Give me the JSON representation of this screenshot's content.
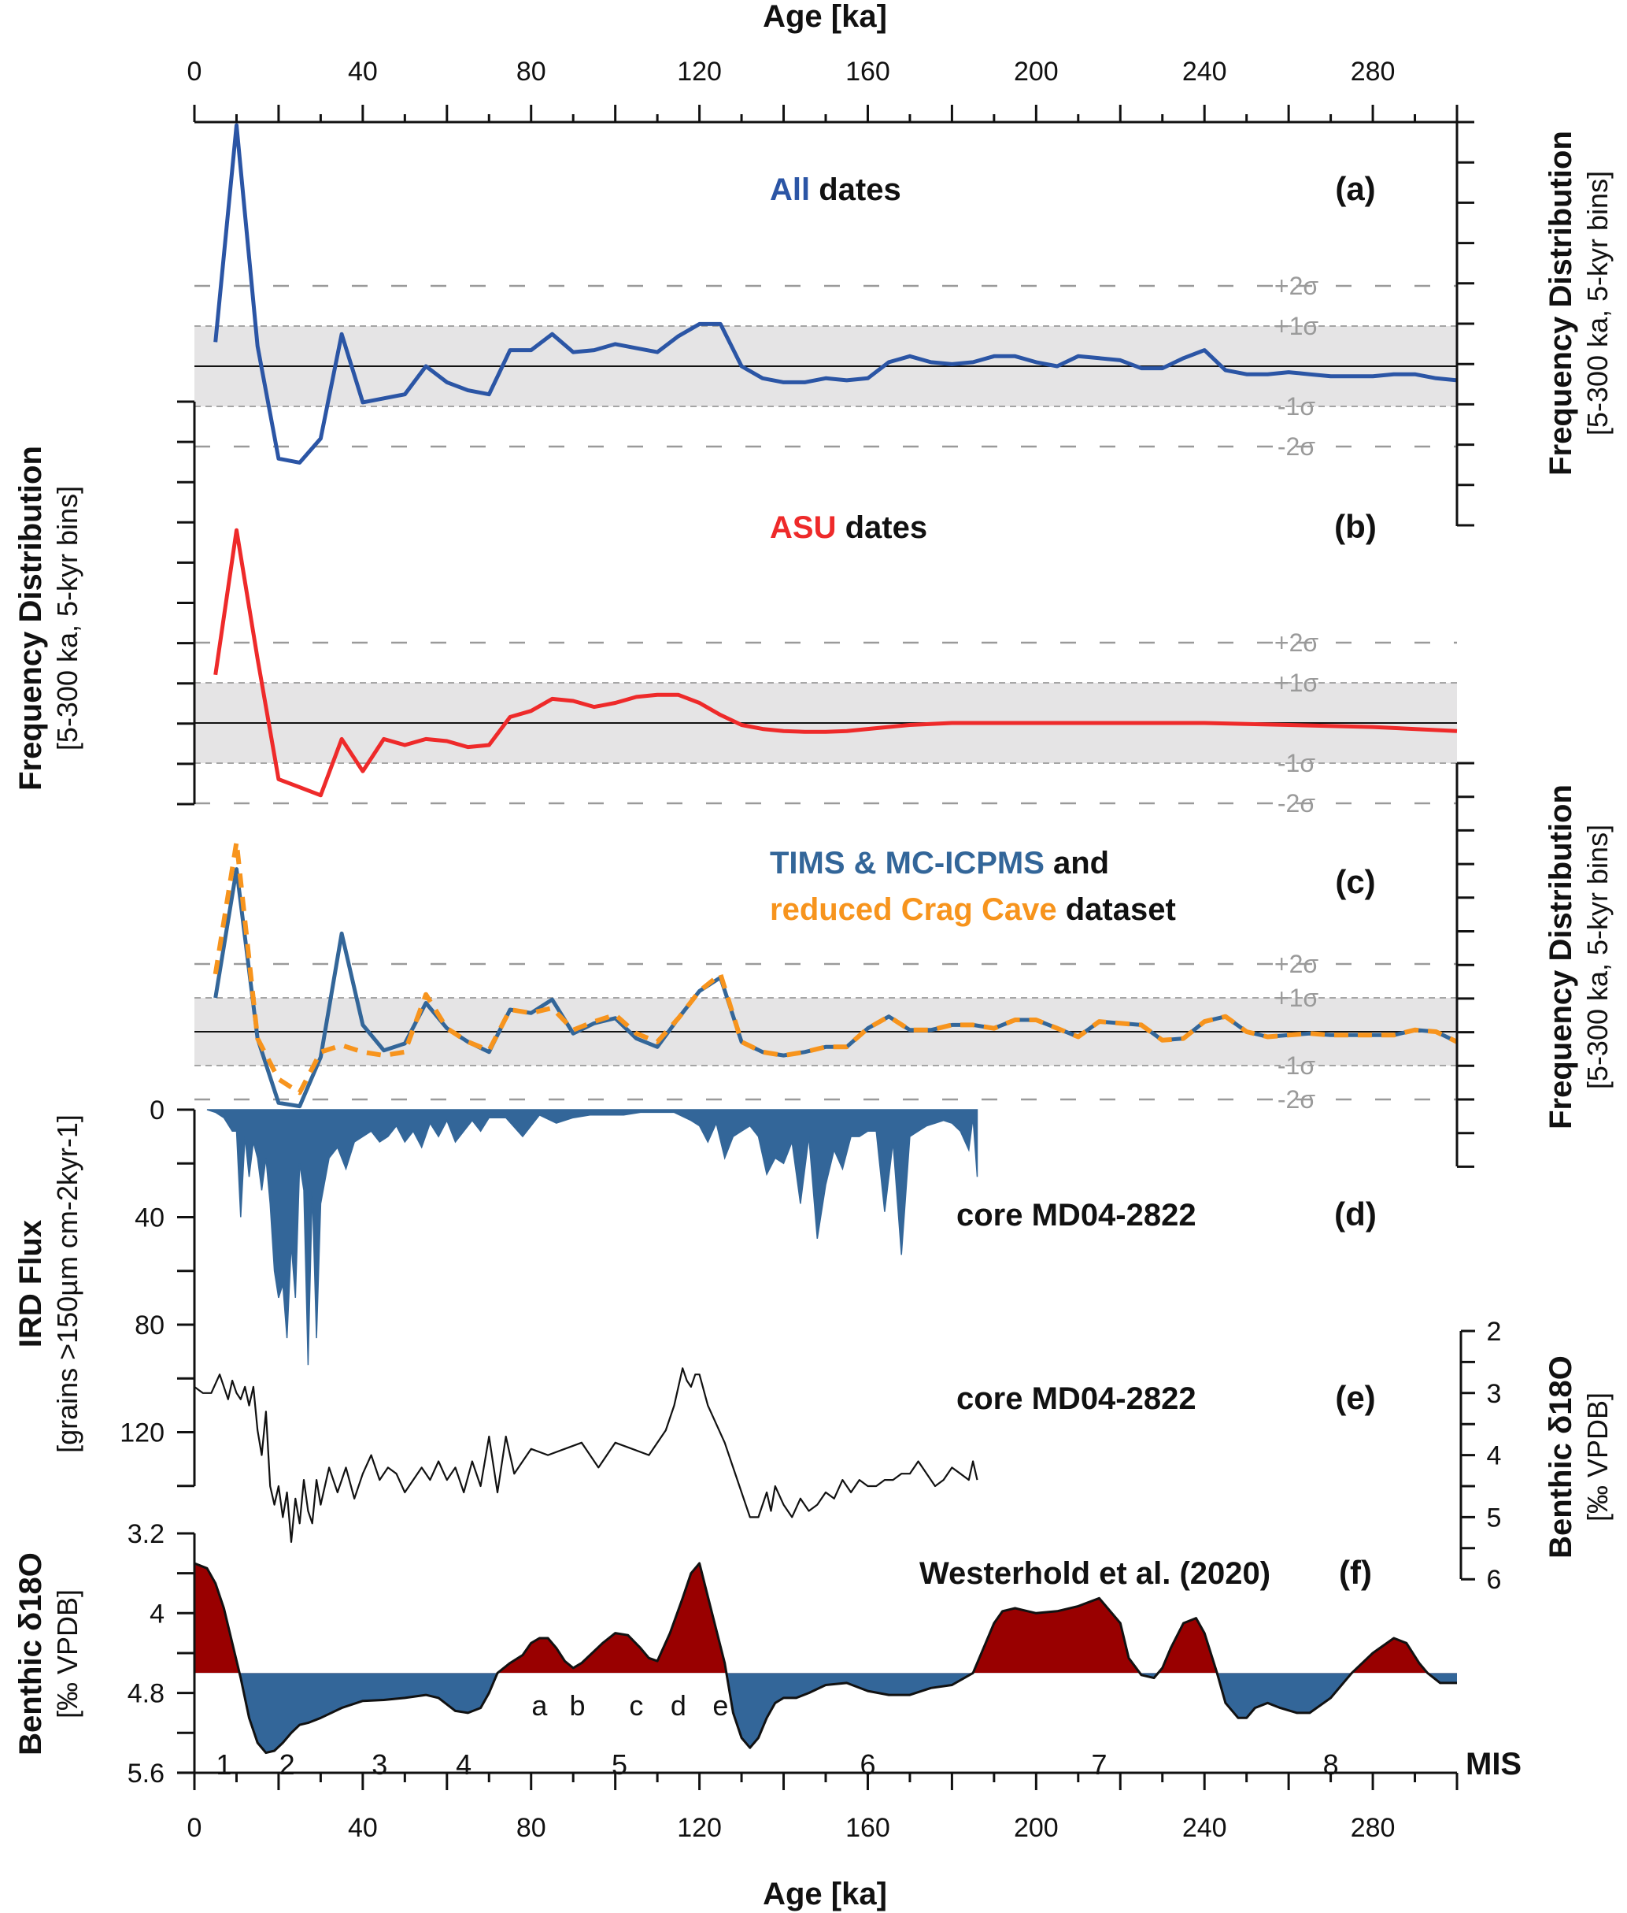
{
  "figure": {
    "top_axis_title": "Age [ka]",
    "bottom_axis_title": "Age [ka]",
    "x_ticks": [
      "0",
      "40",
      "80",
      "120",
      "160",
      "200",
      "240",
      "280"
    ],
    "x_range": [
      0,
      300
    ],
    "left_freq_axis": {
      "title": "Frequency Distribution",
      "subtitle": "[5-300 ka, 5-kyr bins]"
    },
    "right_freq_axis_a": {
      "title": "Frequency Distribution",
      "subtitle": "[5-300 ka, 5-kyr bins]"
    },
    "right_freq_axis_c": {
      "title": "Frequency Distribution",
      "subtitle": "[5-300 ka, 5-kyr bins]"
    },
    "sigma_labels": [
      "+2σ",
      "+1σ",
      "-1σ",
      "-2σ"
    ],
    "colors": {
      "all_dates": "#2b55a5",
      "asu_dates": "#ee2a2a",
      "tims": "#336699",
      "crag_cave": "#f7941d",
      "ird_fill": "#336699",
      "warm_fill": "#990000",
      "cold_fill": "#336699",
      "band_fill": "#e5e4e5",
      "sigma_grey": "#9a9a9a"
    }
  },
  "chart_data": [
    {
      "panel": "a",
      "type": "line",
      "letter": "(a)",
      "title_parts": [
        {
          "text": "All",
          "color": "all_dates"
        },
        {
          "text": " dates",
          "color": "black"
        }
      ],
      "ylabel": "Frequency Distribution [5-300 ka, 5-kyr bins]",
      "units": "sigma (standardized)",
      "ylim": [
        -4,
        7
      ],
      "x": [
        5,
        10,
        15,
        20,
        25,
        30,
        35,
        40,
        45,
        50,
        55,
        60,
        65,
        70,
        75,
        80,
        85,
        90,
        95,
        100,
        105,
        110,
        115,
        120,
        125,
        130,
        135,
        140,
        145,
        150,
        155,
        160,
        165,
        170,
        175,
        180,
        185,
        190,
        195,
        200,
        205,
        210,
        215,
        220,
        225,
        230,
        235,
        240,
        245,
        250,
        255,
        260,
        265,
        270,
        275,
        280,
        285,
        290,
        295,
        300
      ],
      "series": [
        {
          "name": "All dates",
          "color_key": "all_dates",
          "dashed": false,
          "values": [
            0.6,
            6.0,
            0.5,
            -2.3,
            -2.4,
            -1.8,
            0.8,
            -0.9,
            -0.8,
            -0.7,
            0.0,
            -0.4,
            -0.6,
            -0.7,
            0.4,
            0.4,
            0.8,
            0.35,
            0.4,
            0.55,
            0.45,
            0.35,
            0.75,
            1.05,
            1.05,
            0.0,
            -0.3,
            -0.4,
            -0.4,
            -0.3,
            -0.35,
            -0.3,
            0.1,
            0.25,
            0.1,
            0.05,
            0.1,
            0.25,
            0.25,
            0.1,
            0.0,
            0.25,
            0.2,
            0.15,
            -0.05,
            -0.05,
            0.2,
            0.4,
            -0.1,
            -0.2,
            -0.2,
            -0.15,
            -0.2,
            -0.25,
            -0.25,
            -0.25,
            -0.2,
            -0.2,
            -0.3,
            -0.35
          ]
        }
      ]
    },
    {
      "panel": "b",
      "type": "line",
      "letter": "(b)",
      "title_parts": [
        {
          "text": "ASU",
          "color": "asu_dates"
        },
        {
          "text": " dates",
          "color": "black"
        }
      ],
      "ylabel": "Frequency Distribution [5-300 ka, 5-kyr bins]",
      "units": "sigma (standardized)",
      "ylim": [
        -2,
        5.5
      ],
      "x": [
        5,
        10,
        15,
        20,
        25,
        30,
        35,
        40,
        45,
        50,
        55,
        60,
        65,
        70,
        75,
        80,
        85,
        90,
        95,
        100,
        105,
        110,
        115,
        120,
        125,
        130,
        135,
        140,
        145,
        150,
        155,
        160,
        170,
        180,
        190,
        200,
        220,
        240,
        260,
        280,
        300
      ],
      "series": [
        {
          "name": "ASU dates",
          "color_key": "asu_dates",
          "dashed": false,
          "values": [
            1.2,
            4.8,
            1.6,
            -1.4,
            -1.6,
            -1.8,
            -0.4,
            -1.2,
            -0.4,
            -0.55,
            -0.4,
            -0.45,
            -0.6,
            -0.55,
            0.15,
            0.3,
            0.6,
            0.55,
            0.4,
            0.5,
            0.65,
            0.7,
            0.7,
            0.5,
            0.2,
            -0.05,
            -0.15,
            -0.2,
            -0.22,
            -0.22,
            -0.2,
            -0.15,
            -0.05,
            0.0,
            0.0,
            0.0,
            0.0,
            0.0,
            -0.05,
            -0.1,
            -0.2
          ]
        }
      ]
    },
    {
      "panel": "c",
      "type": "line",
      "letter": "(c)",
      "title_line1_parts": [
        {
          "text": "TIMS & MC-ICPMS",
          "color": "tims"
        },
        {
          "text": " and",
          "color": "black"
        }
      ],
      "title_line2_parts": [
        {
          "text": "reduced Crag Cave",
          "color": "crag_cave"
        },
        {
          "text": " dataset",
          "color": "black"
        }
      ],
      "ylabel": "Frequency Distribution [5-300 ka, 5-kyr bins]",
      "units": "sigma (standardized)",
      "ylim": [
        -4,
        5
      ],
      "x": [
        5,
        10,
        15,
        20,
        25,
        30,
        35,
        40,
        45,
        50,
        55,
        60,
        65,
        70,
        75,
        80,
        85,
        90,
        95,
        100,
        105,
        110,
        115,
        120,
        125,
        130,
        135,
        140,
        145,
        150,
        155,
        160,
        165,
        170,
        175,
        180,
        185,
        190,
        195,
        200,
        205,
        210,
        215,
        220,
        225,
        230,
        235,
        240,
        245,
        250,
        255,
        260,
        265,
        270,
        275,
        280,
        285,
        290,
        295,
        300
      ],
      "series": [
        {
          "name": "TIMS & MC-ICPMS",
          "color_key": "tims",
          "dashed": false,
          "values": [
            1.0,
            4.8,
            -0.2,
            -2.1,
            -2.2,
            -0.75,
            2.9,
            0.2,
            -0.55,
            -0.35,
            0.85,
            0.1,
            -0.3,
            -0.6,
            0.65,
            0.55,
            0.95,
            -0.05,
            0.25,
            0.4,
            -0.2,
            -0.45,
            0.4,
            1.2,
            1.6,
            -0.3,
            -0.6,
            -0.7,
            -0.6,
            -0.45,
            -0.45,
            0.1,
            0.45,
            0.05,
            0.05,
            0.2,
            0.2,
            0.1,
            0.35,
            0.35,
            0.1,
            -0.15,
            0.3,
            0.25,
            0.2,
            -0.25,
            -0.2,
            0.3,
            0.45,
            0.0,
            -0.15,
            -0.1,
            -0.05,
            -0.1,
            -0.1,
            -0.1,
            -0.1,
            0.05,
            0.0,
            -0.3
          ]
        },
        {
          "name": "reduced Crag Cave dataset",
          "color_key": "crag_cave",
          "dashed": true,
          "values": [
            1.7,
            5.6,
            -0.2,
            -1.4,
            -1.8,
            -0.6,
            -0.4,
            -0.6,
            -0.7,
            -0.6,
            1.1,
            0.1,
            -0.3,
            -0.55,
            0.65,
            0.55,
            0.7,
            0.05,
            0.3,
            0.5,
            -0.05,
            -0.3,
            0.4,
            1.2,
            1.7,
            -0.3,
            -0.6,
            -0.7,
            -0.6,
            -0.45,
            -0.45,
            0.1,
            0.45,
            0.05,
            0.05,
            0.2,
            0.2,
            0.1,
            0.35,
            0.35,
            0.1,
            -0.15,
            0.3,
            0.25,
            0.2,
            -0.25,
            -0.2,
            0.3,
            0.45,
            0.0,
            -0.15,
            -0.1,
            -0.05,
            -0.1,
            -0.1,
            -0.1,
            -0.1,
            0.05,
            0.0,
            -0.3
          ]
        }
      ]
    },
    {
      "panel": "d",
      "type": "area",
      "letter": "(d)",
      "label": "core MD04-2822",
      "ylabel": "IRD Flux",
      "ylabel_sub": "[grains >150µm cm-2kyr-1]",
      "y_inverted": true,
      "ylim": [
        0,
        140
      ],
      "yticks": [
        "0",
        "40",
        "80",
        "120"
      ],
      "x": [
        3,
        5,
        7,
        9,
        10,
        11,
        12,
        13,
        14,
        15,
        16,
        17,
        18,
        19,
        20,
        21,
        22,
        23,
        24,
        25,
        26,
        27,
        28,
        29,
        30,
        32,
        34,
        36,
        38,
        40,
        42,
        44,
        46,
        48,
        50,
        52,
        54,
        56,
        58,
        60,
        62,
        64,
        66,
        68,
        70,
        74,
        78,
        82,
        86,
        90,
        94,
        98,
        102,
        106,
        110,
        114,
        118,
        120,
        122,
        124,
        126,
        128,
        130,
        132,
        134,
        136,
        138,
        140,
        142,
        144,
        146,
        148,
        150,
        152,
        154,
        156,
        158,
        160,
        162,
        164,
        166,
        168,
        170,
        172,
        174,
        176,
        178,
        180,
        182,
        184,
        185,
        186
      ],
      "values": [
        0,
        1,
        3,
        8,
        8,
        40,
        10,
        25,
        12,
        18,
        30,
        18,
        35,
        60,
        70,
        65,
        85,
        50,
        70,
        20,
        30,
        95,
        30,
        85,
        35,
        18,
        14,
        22,
        12,
        10,
        8,
        12,
        10,
        6,
        12,
        8,
        14,
        5,
        10,
        4,
        12,
        8,
        4,
        8,
        3,
        3,
        10,
        2,
        5,
        3,
        2,
        2,
        2,
        1,
        1,
        1,
        4,
        6,
        12,
        5,
        18,
        10,
        8,
        6,
        10,
        24,
        18,
        20,
        12,
        35,
        10,
        48,
        28,
        15,
        22,
        10,
        10,
        8,
        8,
        38,
        12,
        54,
        10,
        8,
        6,
        5,
        4,
        5,
        8,
        15,
        3,
        25
      ]
    },
    {
      "panel": "e",
      "type": "line",
      "letter": "(e)",
      "label": "core MD04-2822",
      "ylabel": "Benthic δ18O",
      "ylabel_sub": "[‰ VPDB]",
      "y_inverted": true,
      "ylim": [
        2,
        6
      ],
      "yticks": [
        "2",
        "3",
        "4",
        "5",
        "6"
      ],
      "x": [
        0,
        2,
        4,
        6,
        8,
        9,
        10,
        11,
        12,
        13,
        14,
        15,
        16,
        17,
        18,
        19,
        20,
        21,
        22,
        23,
        24,
        25,
        26,
        27,
        28,
        29,
        30,
        32,
        34,
        36,
        38,
        40,
        42,
        44,
        46,
        48,
        50,
        52,
        54,
        56,
        58,
        60,
        62,
        64,
        66,
        68,
        70,
        72,
        74,
        76,
        80,
        84,
        88,
        92,
        96,
        100,
        104,
        108,
        112,
        114,
        116,
        117,
        118,
        119,
        120,
        122,
        124,
        126,
        128,
        130,
        132,
        134,
        135,
        136,
        137,
        138,
        140,
        142,
        144,
        146,
        148,
        150,
        152,
        154,
        156,
        158,
        160,
        162,
        164,
        166,
        168,
        170,
        172,
        174,
        176,
        178,
        180,
        182,
        184,
        185,
        186
      ],
      "values": [
        2.9,
        3.0,
        3.0,
        2.7,
        3.1,
        2.8,
        3.0,
        3.1,
        2.9,
        3.2,
        2.9,
        3.6,
        4.0,
        3.3,
        4.5,
        4.8,
        4.5,
        5.0,
        4.6,
        5.4,
        4.7,
        5.1,
        4.4,
        4.9,
        5.1,
        4.4,
        4.8,
        4.2,
        4.6,
        4.2,
        4.7,
        4.3,
        4.0,
        4.4,
        4.2,
        4.3,
        4.6,
        4.4,
        4.2,
        4.4,
        4.1,
        4.4,
        4.2,
        4.6,
        4.1,
        4.5,
        3.7,
        4.6,
        3.7,
        4.3,
        3.9,
        4.0,
        3.9,
        3.8,
        4.2,
        3.8,
        3.9,
        4.0,
        3.6,
        3.2,
        2.6,
        2.8,
        2.9,
        2.7,
        2.7,
        3.2,
        3.5,
        3.8,
        4.2,
        4.6,
        5.0,
        5.0,
        4.8,
        4.6,
        4.9,
        4.5,
        4.8,
        5.0,
        4.7,
        4.9,
        4.8,
        4.6,
        4.7,
        4.4,
        4.6,
        4.4,
        4.5,
        4.5,
        4.4,
        4.4,
        4.3,
        4.3,
        4.1,
        4.3,
        4.5,
        4.4,
        4.2,
        4.3,
        4.4,
        4.1,
        4.4
      ]
    },
    {
      "panel": "f",
      "type": "area",
      "letter": "(f)",
      "label": "Westerhold et al. (2020)",
      "ylabel": "Benthic δ18O",
      "ylabel_sub": "[‰ VPDB]",
      "y_inverted": true,
      "ylim": [
        3.2,
        5.6
      ],
      "yticks": [
        "3.2",
        "4",
        "4.8",
        "5.6"
      ],
      "baseline": 4.6,
      "x": [
        0,
        3,
        5,
        7,
        9,
        11,
        13,
        15,
        17,
        19,
        21,
        23,
        25,
        27,
        30,
        35,
        40,
        45,
        50,
        55,
        58,
        62,
        65,
        68,
        70,
        72,
        75,
        78,
        80,
        82,
        84,
        86,
        88,
        90,
        92,
        94,
        97,
        100,
        103,
        106,
        108,
        110,
        113,
        116,
        118,
        120,
        123,
        126,
        128,
        130,
        132,
        134,
        136,
        138,
        140,
        143,
        146,
        150,
        155,
        160,
        165,
        170,
        175,
        180,
        185,
        188,
        190,
        192,
        195,
        198,
        200,
        205,
        210,
        215,
        220,
        222,
        225,
        228,
        230,
        232,
        235,
        238,
        240,
        243,
        245,
        248,
        250,
        252,
        255,
        258,
        262,
        265,
        270,
        275,
        280,
        285,
        288,
        291,
        293,
        296,
        298,
        300
      ],
      "values": [
        3.5,
        3.55,
        3.7,
        3.95,
        4.3,
        4.65,
        5.05,
        5.3,
        5.4,
        5.38,
        5.3,
        5.2,
        5.12,
        5.1,
        5.05,
        4.95,
        4.88,
        4.87,
        4.85,
        4.82,
        4.85,
        4.98,
        5.0,
        4.95,
        4.8,
        4.6,
        4.5,
        4.42,
        4.3,
        4.25,
        4.25,
        4.35,
        4.48,
        4.55,
        4.5,
        4.42,
        4.3,
        4.2,
        4.22,
        4.35,
        4.45,
        4.48,
        4.2,
        3.85,
        3.6,
        3.5,
        4.0,
        4.5,
        5.0,
        5.25,
        5.35,
        5.25,
        5.05,
        4.9,
        4.85,
        4.85,
        4.8,
        4.72,
        4.7,
        4.78,
        4.82,
        4.82,
        4.75,
        4.72,
        4.6,
        4.3,
        4.1,
        3.98,
        3.95,
        3.98,
        4.0,
        3.98,
        3.93,
        3.85,
        4.1,
        4.45,
        4.62,
        4.65,
        4.55,
        4.35,
        4.1,
        4.05,
        4.2,
        4.6,
        4.9,
        5.05,
        5.05,
        4.95,
        4.9,
        4.95,
        5.0,
        5.0,
        4.85,
        4.6,
        4.4,
        4.25,
        4.3,
        4.5,
        4.6,
        4.7,
        4.7,
        4.7
      ],
      "sub_labels": [
        {
          "text": "a",
          "x": 82
        },
        {
          "text": "b",
          "x": 91
        },
        {
          "text": "c",
          "x": 105
        },
        {
          "text": "d",
          "x": 115
        },
        {
          "text": "e",
          "x": 125
        }
      ],
      "mis_title": "MIS",
      "mis_labels": [
        {
          "text": "1",
          "x": 7
        },
        {
          "text": "2",
          "x": 22
        },
        {
          "text": "3",
          "x": 44
        },
        {
          "text": "4",
          "x": 64
        },
        {
          "text": "5",
          "x": 101
        },
        {
          "text": "6",
          "x": 160
        },
        {
          "text": "7",
          "x": 215
        },
        {
          "text": "8",
          "x": 270
        }
      ]
    }
  ]
}
